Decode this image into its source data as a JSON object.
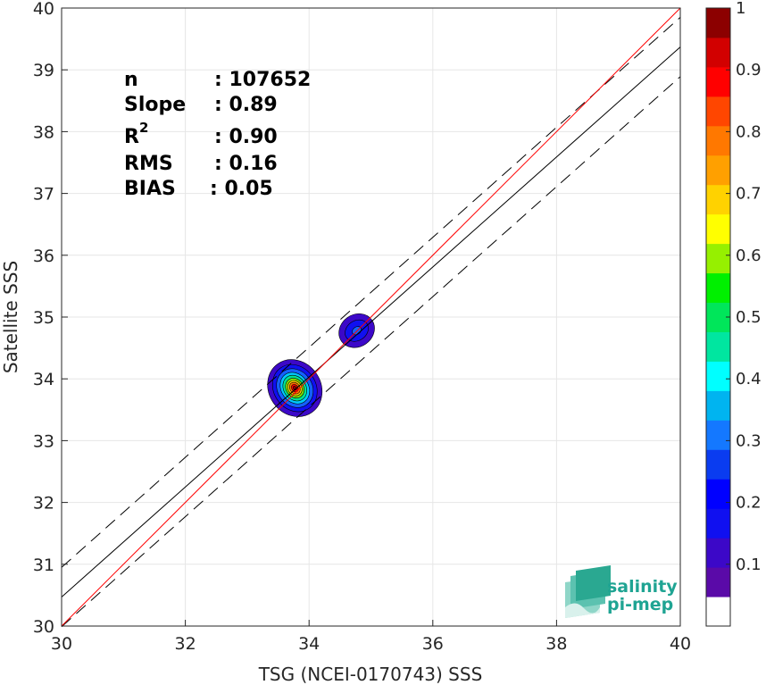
{
  "chart_data": {
    "type": "heatmap",
    "title": "",
    "xlabel": "TSG (NCEI-0170743) SSS",
    "ylabel": "Satellite SSS",
    "xlim": [
      30,
      40
    ],
    "ylim": [
      30,
      40
    ],
    "xticks": [
      "30",
      "32",
      "34",
      "36",
      "38",
      "40"
    ],
    "yticks": [
      "30",
      "31",
      "32",
      "33",
      "34",
      "35",
      "36",
      "37",
      "38",
      "39",
      "40"
    ],
    "grid": true,
    "stats": [
      {
        "label": "n",
        "value": ": 107652"
      },
      {
        "label": "Slope",
        "value": ": 0.89"
      },
      {
        "label": "R",
        "sup": "2",
        "value": ": 0.90"
      },
      {
        "label": "RMS",
        "value": ": 0.16"
      },
      {
        "label": "BIAS",
        "value": ": 0.05"
      }
    ],
    "lines": {
      "identity": {
        "color": "#ff0000",
        "x": [
          30,
          40
        ],
        "y": [
          30,
          40
        ]
      },
      "fit": {
        "color": "#000000",
        "x": [
          30,
          40
        ],
        "y": [
          30.47,
          39.37
        ]
      },
      "fit_upper": {
        "color": "#000000",
        "dash": true,
        "x": [
          30,
          40
        ],
        "y": [
          30.95,
          39.85
        ]
      },
      "fit_lower": {
        "color": "#000000",
        "dash": true,
        "x": [
          30,
          40
        ],
        "y": [
          29.99,
          38.89
        ]
      }
    },
    "density_clusters": [
      {
        "cx": 33.77,
        "cy": 33.85,
        "levels": [
          {
            "level": 0.05,
            "rx": 0.42,
            "ry": 0.48,
            "color": "#3c08c8"
          },
          {
            "level": 0.15,
            "rx": 0.34,
            "ry": 0.4,
            "color": "#1010f0"
          },
          {
            "level": 0.25,
            "rx": 0.28,
            "ry": 0.33,
            "color": "#1460ff"
          },
          {
            "level": 0.35,
            "rx": 0.22,
            "ry": 0.27,
            "color": "#00c8ff"
          },
          {
            "level": 0.45,
            "rx": 0.18,
            "ry": 0.22,
            "color": "#00e090"
          },
          {
            "level": 0.55,
            "rx": 0.14,
            "ry": 0.17,
            "color": "#80e000"
          },
          {
            "level": 0.65,
            "rx": 0.11,
            "ry": 0.13,
            "color": "#ffd000"
          },
          {
            "level": 0.75,
            "rx": 0.08,
            "ry": 0.1,
            "color": "#ff7000"
          },
          {
            "level": 0.85,
            "rx": 0.05,
            "ry": 0.065,
            "color": "#ff0000"
          },
          {
            "level": 0.95,
            "rx": 0.025,
            "ry": 0.035,
            "color": "#900000"
          }
        ]
      },
      {
        "cx": 34.77,
        "cy": 34.78,
        "levels": [
          {
            "level": 0.05,
            "rx": 0.3,
            "ry": 0.26,
            "color": "#3c08c8"
          },
          {
            "level": 0.15,
            "rx": 0.2,
            "ry": 0.16,
            "color": "#1010f0"
          },
          {
            "level": 0.25,
            "rx": 0.08,
            "ry": 0.06,
            "color": "#1460ff"
          }
        ]
      }
    ],
    "colorbar": {
      "range": [
        0,
        1
      ],
      "ticks": [
        "0.1",
        "0.2",
        "0.3",
        "0.4",
        "0.5",
        "0.6",
        "0.7",
        "0.8",
        "0.9",
        "1"
      ],
      "colors": [
        "#ffffff",
        "#5a0aa8",
        "#3c08c8",
        "#1010f0",
        "#0000ff",
        "#0a3cf0",
        "#1478ff",
        "#00b4f0",
        "#00ffff",
        "#00e6a0",
        "#00e65a",
        "#00f000",
        "#96f000",
        "#ffff00",
        "#ffd200",
        "#ffa000",
        "#ff7800",
        "#ff4600",
        "#ff0000",
        "#d20000",
        "#8c0000"
      ]
    }
  },
  "logo": {
    "line1": "salinity",
    "line2": "pi-mep"
  }
}
